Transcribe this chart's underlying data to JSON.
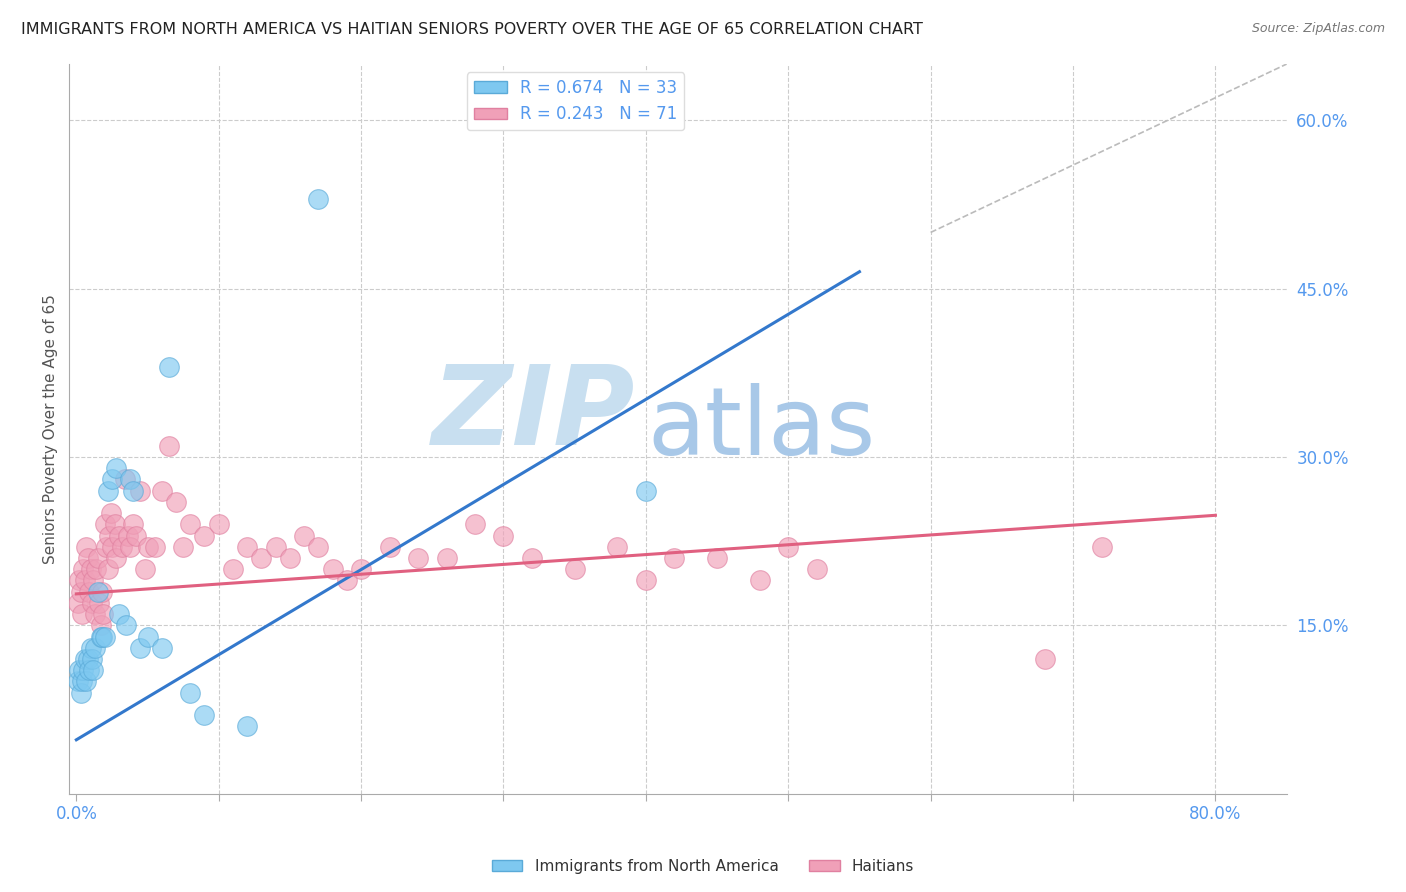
{
  "title": "IMMIGRANTS FROM NORTH AMERICA VS HAITIAN SENIORS POVERTY OVER THE AGE OF 65 CORRELATION CHART",
  "source": "Source: ZipAtlas.com",
  "xlabel_ticks_show": [
    "0.0%",
    "",
    "",
    "",
    "",
    "",
    "",
    "",
    "80.0%"
  ],
  "xlabel_vals": [
    0.0,
    0.1,
    0.2,
    0.3,
    0.4,
    0.5,
    0.6,
    0.7,
    0.8
  ],
  "ylabel": "Seniors Poverty Over the Age of 65",
  "ylim": [
    0.0,
    0.65
  ],
  "xlim": [
    -0.005,
    0.85
  ],
  "right_yticks": [
    0.15,
    0.3,
    0.45,
    0.6
  ],
  "right_ytick_labels": [
    "15.0%",
    "30.0%",
    "45.0%",
    "60.0%"
  ],
  "legend_entries": [
    {
      "label": "R = 0.674   N = 33",
      "color": "#87BEEC"
    },
    {
      "label": "R = 0.243   N = 71",
      "color": "#F4A0B0"
    }
  ],
  "blue_scatter_x": [
    0.001,
    0.002,
    0.003,
    0.004,
    0.005,
    0.006,
    0.007,
    0.008,
    0.009,
    0.01,
    0.011,
    0.012,
    0.013,
    0.015,
    0.017,
    0.018,
    0.02,
    0.022,
    0.025,
    0.028,
    0.03,
    0.035,
    0.038,
    0.04,
    0.045,
    0.05,
    0.06,
    0.065,
    0.08,
    0.09,
    0.12,
    0.17,
    0.4
  ],
  "blue_scatter_y": [
    0.1,
    0.11,
    0.09,
    0.1,
    0.11,
    0.12,
    0.1,
    0.12,
    0.11,
    0.13,
    0.12,
    0.11,
    0.13,
    0.18,
    0.14,
    0.14,
    0.14,
    0.27,
    0.28,
    0.29,
    0.16,
    0.15,
    0.28,
    0.27,
    0.13,
    0.14,
    0.13,
    0.38,
    0.09,
    0.07,
    0.06,
    0.53,
    0.27
  ],
  "pink_scatter_x": [
    0.001,
    0.002,
    0.003,
    0.004,
    0.005,
    0.006,
    0.007,
    0.008,
    0.009,
    0.01,
    0.011,
    0.012,
    0.013,
    0.014,
    0.015,
    0.016,
    0.017,
    0.018,
    0.019,
    0.02,
    0.021,
    0.022,
    0.023,
    0.024,
    0.025,
    0.027,
    0.028,
    0.03,
    0.032,
    0.034,
    0.036,
    0.038,
    0.04,
    0.042,
    0.045,
    0.048,
    0.05,
    0.055,
    0.06,
    0.065,
    0.07,
    0.075,
    0.08,
    0.09,
    0.1,
    0.11,
    0.12,
    0.13,
    0.14,
    0.15,
    0.16,
    0.17,
    0.18,
    0.19,
    0.2,
    0.22,
    0.24,
    0.26,
    0.28,
    0.3,
    0.32,
    0.35,
    0.38,
    0.4,
    0.42,
    0.45,
    0.48,
    0.5,
    0.52,
    0.68,
    0.72
  ],
  "pink_scatter_y": [
    0.17,
    0.19,
    0.18,
    0.16,
    0.2,
    0.19,
    0.22,
    0.21,
    0.18,
    0.2,
    0.17,
    0.19,
    0.16,
    0.2,
    0.21,
    0.17,
    0.15,
    0.18,
    0.16,
    0.24,
    0.22,
    0.2,
    0.23,
    0.25,
    0.22,
    0.24,
    0.21,
    0.23,
    0.22,
    0.28,
    0.23,
    0.22,
    0.24,
    0.23,
    0.27,
    0.2,
    0.22,
    0.22,
    0.27,
    0.31,
    0.26,
    0.22,
    0.24,
    0.23,
    0.24,
    0.2,
    0.22,
    0.21,
    0.22,
    0.21,
    0.23,
    0.22,
    0.2,
    0.19,
    0.2,
    0.22,
    0.21,
    0.21,
    0.24,
    0.23,
    0.21,
    0.2,
    0.22,
    0.19,
    0.21,
    0.21,
    0.19,
    0.22,
    0.2,
    0.12,
    0.22
  ],
  "blue_line_x": [
    0.0,
    0.55
  ],
  "blue_line_y": [
    0.048,
    0.465
  ],
  "pink_line_x": [
    0.0,
    0.8
  ],
  "pink_line_y": [
    0.178,
    0.248
  ],
  "diag_line_x": [
    0.6,
    0.85
  ],
  "diag_line_y": [
    0.5,
    0.65
  ],
  "watermark_zip": "ZIP",
  "watermark_atlas": "atlas",
  "watermark_color_zip": "#C8DFF0",
  "watermark_color_atlas": "#A8C8E8",
  "title_color": "#222222",
  "source_color": "#777777",
  "axis_label_color": "#555555",
  "tick_color": "#5599EE",
  "scatter_blue_color": "#7EC8F0",
  "scatter_blue_edge": "#5AAAD8",
  "scatter_pink_color": "#F0A0B8",
  "scatter_pink_edge": "#E080A0",
  "trend_blue_color": "#3378CC",
  "trend_pink_color": "#E06080",
  "grid_color": "#CCCCCC",
  "background_color": "#FFFFFF"
}
